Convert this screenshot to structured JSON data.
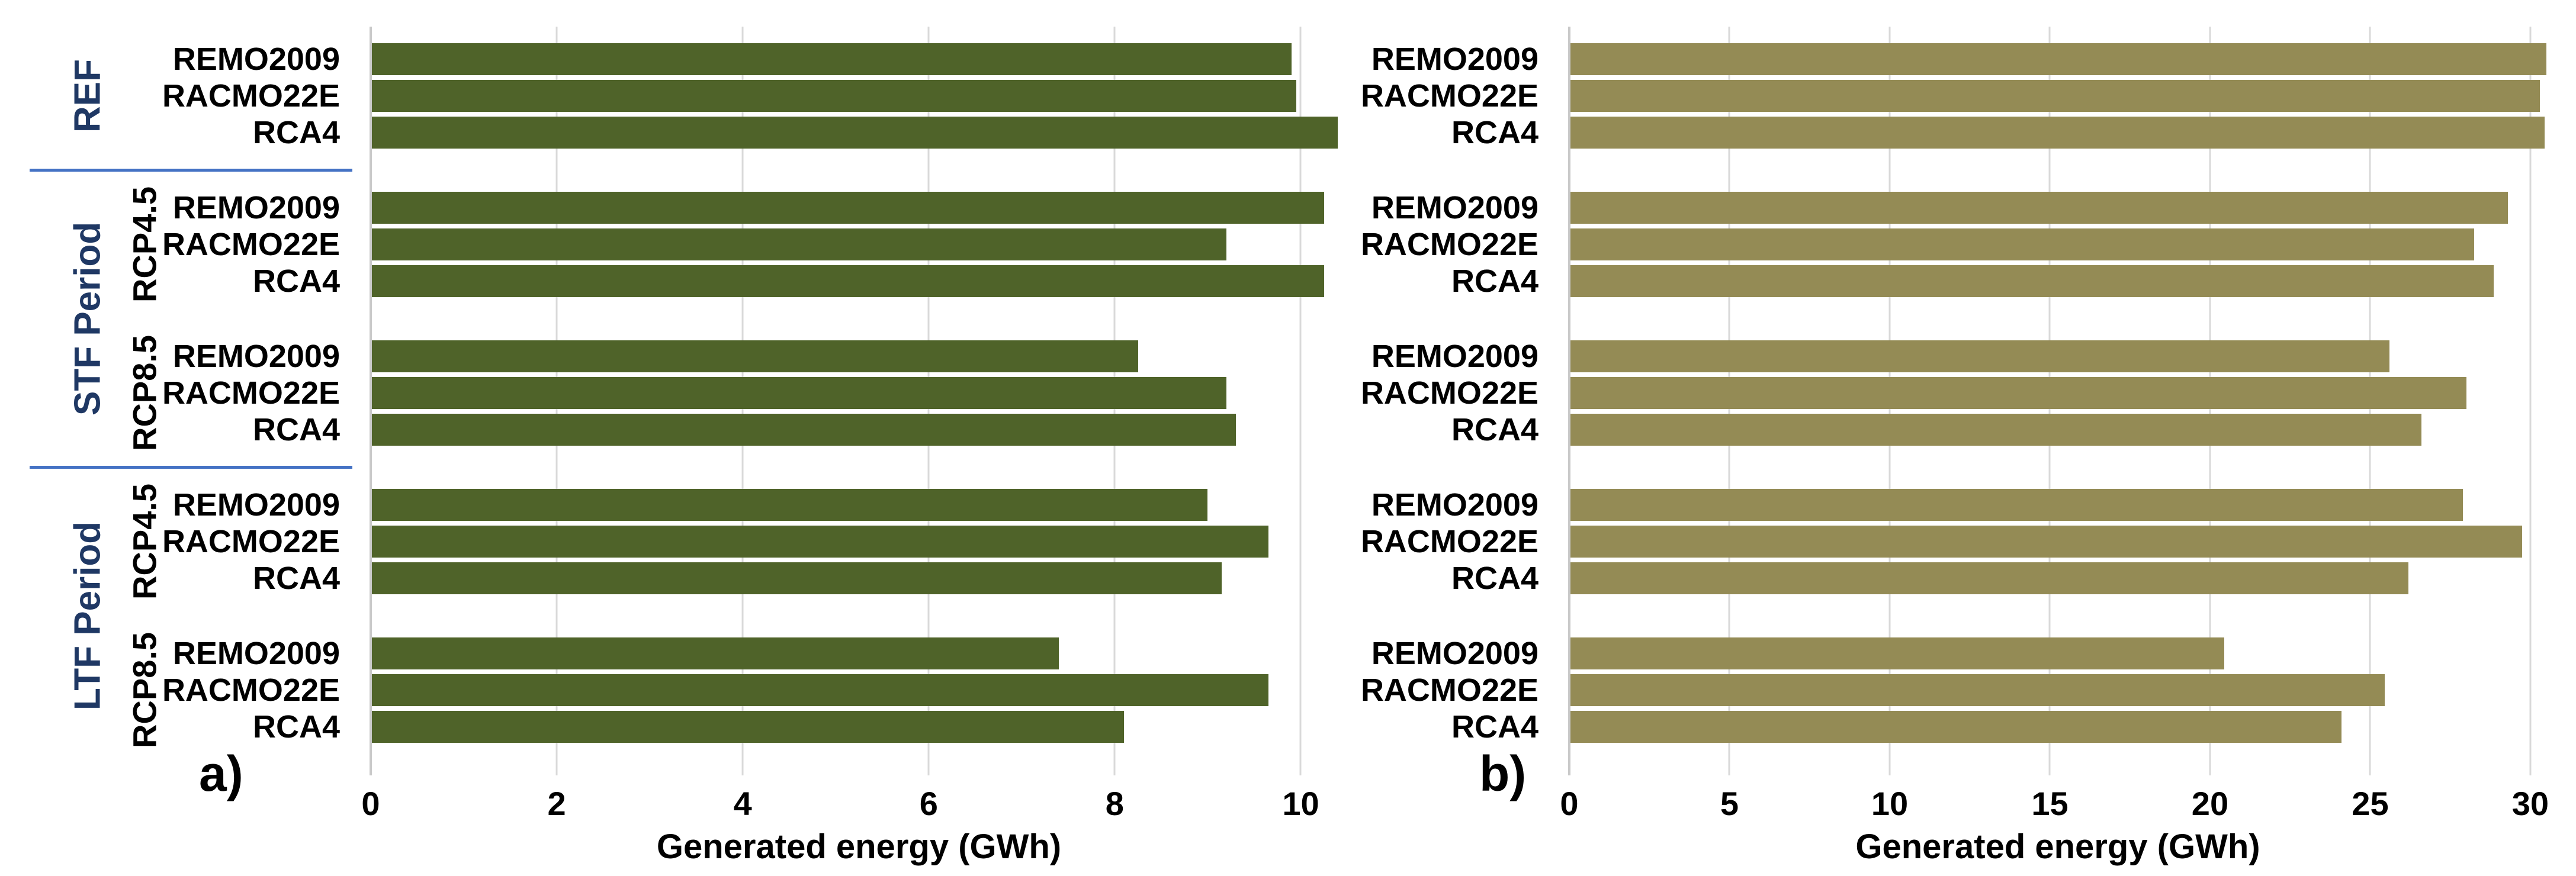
{
  "figure": {
    "panel_a_letter": "a)",
    "panel_b_letter": "b)"
  },
  "colors": {
    "panel_a_bar": "#4F6329",
    "panel_b_bar": "#948B55",
    "gridline": "#D9D9D9",
    "axis_line": "#C9C9C9",
    "period_label": "#1F3864",
    "separator": "#4472C4",
    "text": "#000000"
  },
  "chart_data": [
    {
      "type": "bar",
      "orientation": "horizontal",
      "panel_label": "a)",
      "title": "",
      "xlabel": "Generated energy (GWh)",
      "ylabel": "",
      "xlim": [
        0,
        10.5
      ],
      "xticks": [
        0,
        2,
        4,
        6,
        8,
        10
      ],
      "gridlines": true,
      "bar_color": "#4F6329",
      "categories": [
        "REMO2009",
        "RACMO22E",
        "RCA4"
      ],
      "groups": [
        {
          "period": "REF",
          "scenario": null,
          "values": [
            9.9,
            9.95,
            10.4
          ]
        },
        {
          "period": "STF",
          "scenario": "RCP4.5",
          "values": [
            10.25,
            9.2,
            10.25
          ]
        },
        {
          "period": "STF",
          "scenario": "RCP8.5",
          "values": [
            8.25,
            9.2,
            9.3
          ]
        },
        {
          "period": "LTF",
          "scenario": "RCP4.5",
          "values": [
            9.0,
            9.65,
            9.15
          ]
        },
        {
          "period": "LTF",
          "scenario": "RCP8.5",
          "values": [
            7.4,
            9.65,
            8.1
          ]
        }
      ],
      "period_labels": [
        {
          "text": "REF",
          "span": [
            0,
            0
          ]
        },
        {
          "text": "STF Period",
          "span": [
            1,
            2
          ]
        },
        {
          "text": "LTF Period",
          "span": [
            3,
            4
          ]
        }
      ],
      "scenario_labels": [
        {
          "text": "RCP4.5",
          "group": 1
        },
        {
          "text": "RCP8.5",
          "group": 2
        },
        {
          "text": "RCP4.5",
          "group": 3
        },
        {
          "text": "RCP8.5",
          "group": 4
        }
      ],
      "separators_after_groups": [
        0,
        2
      ]
    },
    {
      "type": "bar",
      "orientation": "horizontal",
      "panel_label": "b)",
      "title": "",
      "xlabel": "Generated energy (GWh)",
      "ylabel": "",
      "xlim": [
        0,
        30.5
      ],
      "xticks": [
        0,
        5,
        10,
        15,
        20,
        25,
        30
      ],
      "gridlines": true,
      "bar_color": "#948B55",
      "categories": [
        "REMO2009",
        "RACMO22E",
        "RCA4"
      ],
      "groups": [
        {
          "period": "REF",
          "scenario": null,
          "values": [
            30.5,
            30.3,
            30.45
          ]
        },
        {
          "period": "STF",
          "scenario": "RCP4.5",
          "values": [
            29.3,
            28.25,
            28.85
          ]
        },
        {
          "period": "STF",
          "scenario": "RCP8.5",
          "values": [
            25.6,
            28.0,
            26.6
          ]
        },
        {
          "period": "LTF",
          "scenario": "RCP4.5",
          "values": [
            27.9,
            29.75,
            26.2
          ]
        },
        {
          "period": "LTF",
          "scenario": "RCP8.5",
          "values": [
            20.45,
            25.45,
            24.1
          ]
        }
      ],
      "period_labels": [],
      "scenario_labels": [],
      "separators_after_groups": []
    }
  ]
}
